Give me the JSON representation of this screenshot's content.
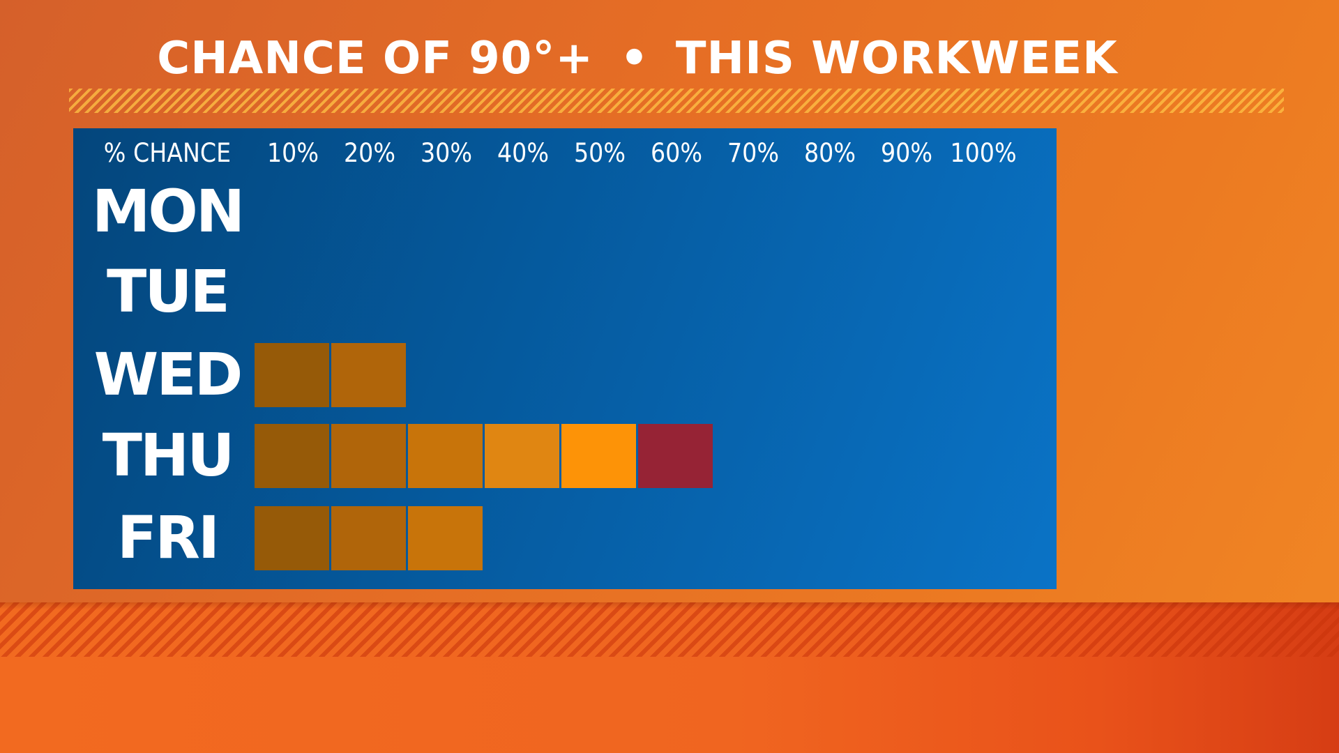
{
  "title": {
    "left": "CHANCE OF 90°+",
    "separator": "•",
    "right": "THIS WORKWEEK"
  },
  "colors": {
    "background": "#e56d25",
    "panel": "#055a9e",
    "header_text": "#ffffff",
    "step_colors": [
      "#965a08",
      "#b0650a",
      "#c8740a",
      "#e08612",
      "#fd9307",
      "#962335"
    ]
  },
  "chart_data": {
    "type": "bar",
    "orientation": "horizontal",
    "title": "CHANCE OF 90°+ • THIS WORKWEEK",
    "header_label": "% CHANCE",
    "tick_labels": [
      "10%",
      "20%",
      "30%",
      "40%",
      "50%",
      "60%",
      "70%",
      "80%",
      "90%",
      "100%"
    ],
    "categories": [
      "MON",
      "TUE",
      "WED",
      "THU",
      "FRI"
    ],
    "values": [
      0,
      0,
      20,
      60,
      30
    ],
    "unit": "%",
    "xlim": [
      0,
      100
    ],
    "segment_step": 10
  }
}
